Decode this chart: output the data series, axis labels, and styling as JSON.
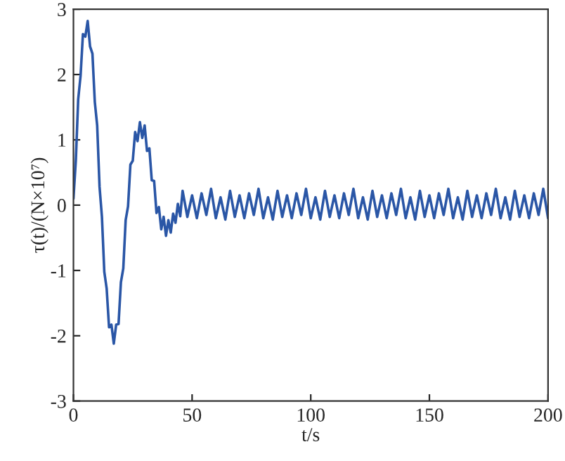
{
  "chart_data": {
    "type": "line",
    "xlabel": "t/s",
    "ylabel": "τ(t)/(N×10⁷)",
    "xlim": [
      0,
      200
    ],
    "ylim": [
      -3,
      3
    ],
    "xticks": [
      0,
      50,
      100,
      150,
      200
    ],
    "yticks": [
      -3,
      -2,
      -1,
      0,
      1,
      2,
      3
    ],
    "grid": false,
    "legend": false,
    "marker": "none",
    "line_style": "solid",
    "series": [
      {
        "color": "#2a56a6",
        "x": [
          0,
          1,
          2,
          3,
          4,
          5,
          6,
          7,
          8,
          9,
          10,
          11,
          12,
          13,
          14,
          15,
          16,
          17,
          18,
          19,
          20,
          21,
          22,
          23,
          24,
          25,
          26,
          27,
          28,
          29,
          30,
          31,
          32,
          33,
          34,
          35,
          36,
          37,
          38,
          39,
          40,
          41,
          42,
          43,
          44,
          45,
          46,
          48,
          50,
          52,
          54,
          56,
          58,
          60,
          62,
          64,
          66,
          68,
          70,
          72,
          74,
          76,
          78,
          80,
          82,
          84,
          86,
          88,
          90,
          92,
          94,
          96,
          98,
          100,
          102,
          104,
          106,
          108,
          110,
          112,
          114,
          116,
          118,
          120,
          122,
          124,
          126,
          128,
          130,
          132,
          134,
          136,
          138,
          140,
          142,
          144,
          146,
          148,
          150,
          152,
          154,
          156,
          158,
          160,
          162,
          164,
          166,
          168,
          170,
          172,
          174,
          176,
          178,
          180,
          182,
          184,
          186,
          188,
          190,
          192,
          194,
          196,
          198,
          200
        ],
        "values": [
          0.1,
          0.68,
          1.62,
          1.98,
          2.62,
          2.58,
          2.82,
          2.43,
          2.32,
          1.58,
          1.22,
          0.28,
          -0.18,
          -1.02,
          -1.28,
          -1.87,
          -1.83,
          -2.12,
          -1.83,
          -1.82,
          -1.18,
          -0.97,
          -0.23,
          -0.02,
          0.62,
          0.68,
          1.12,
          0.98,
          1.27,
          1.03,
          1.22,
          0.83,
          0.87,
          0.38,
          0.37,
          -0.12,
          -0.03,
          -0.37,
          -0.18,
          -0.47,
          -0.23,
          -0.42,
          -0.13,
          -0.27,
          0.02,
          -0.17,
          0.22,
          -0.18,
          0.15,
          -0.2,
          0.18,
          -0.15,
          0.25,
          -0.2,
          0.12,
          -0.22,
          0.22,
          -0.18,
          0.15,
          -0.2,
          0.18,
          -0.15,
          0.25,
          -0.2,
          0.12,
          -0.22,
          0.22,
          -0.18,
          0.15,
          -0.2,
          0.18,
          -0.15,
          0.25,
          -0.2,
          0.12,
          -0.22,
          0.22,
          -0.18,
          0.15,
          -0.2,
          0.18,
          -0.15,
          0.25,
          -0.2,
          0.12,
          -0.22,
          0.22,
          -0.18,
          0.15,
          -0.2,
          0.18,
          -0.15,
          0.25,
          -0.2,
          0.12,
          -0.22,
          0.22,
          -0.18,
          0.15,
          -0.2,
          0.18,
          -0.15,
          0.25,
          -0.2,
          0.12,
          -0.22,
          0.22,
          -0.18,
          0.15,
          -0.2,
          0.18,
          -0.15,
          0.25,
          -0.2,
          0.12,
          -0.22,
          0.22,
          -0.18,
          0.15,
          -0.2,
          0.18,
          -0.15,
          0.25,
          -0.2
        ]
      }
    ]
  }
}
